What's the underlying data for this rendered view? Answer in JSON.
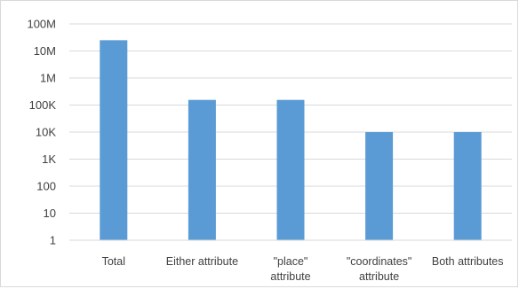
{
  "chart_data": {
    "type": "bar",
    "title": "",
    "xlabel": "",
    "ylabel": "",
    "yscale": "log",
    "ylim": [
      1,
      100000000
    ],
    "grid": true,
    "legend": "none",
    "bar_color": "#5b9bd5",
    "y_ticks": [
      {
        "value": 1,
        "label": "1"
      },
      {
        "value": 10,
        "label": "10"
      },
      {
        "value": 100,
        "label": "100"
      },
      {
        "value": 1000,
        "label": "1K"
      },
      {
        "value": 10000,
        "label": "10K"
      },
      {
        "value": 100000,
        "label": "100K"
      },
      {
        "value": 1000000,
        "label": "1M"
      },
      {
        "value": 10000000,
        "label": "10M"
      },
      {
        "value": 100000000,
        "label": "100M"
      }
    ],
    "categories": [
      [
        "Total"
      ],
      [
        "Either attribute"
      ],
      [
        "\"place\"",
        "attribute"
      ],
      [
        "\"coordinates\"",
        "attribute"
      ],
      [
        "Both attributes"
      ]
    ],
    "values": [
      25000000,
      155000,
      155000,
      10000,
      10000
    ]
  }
}
